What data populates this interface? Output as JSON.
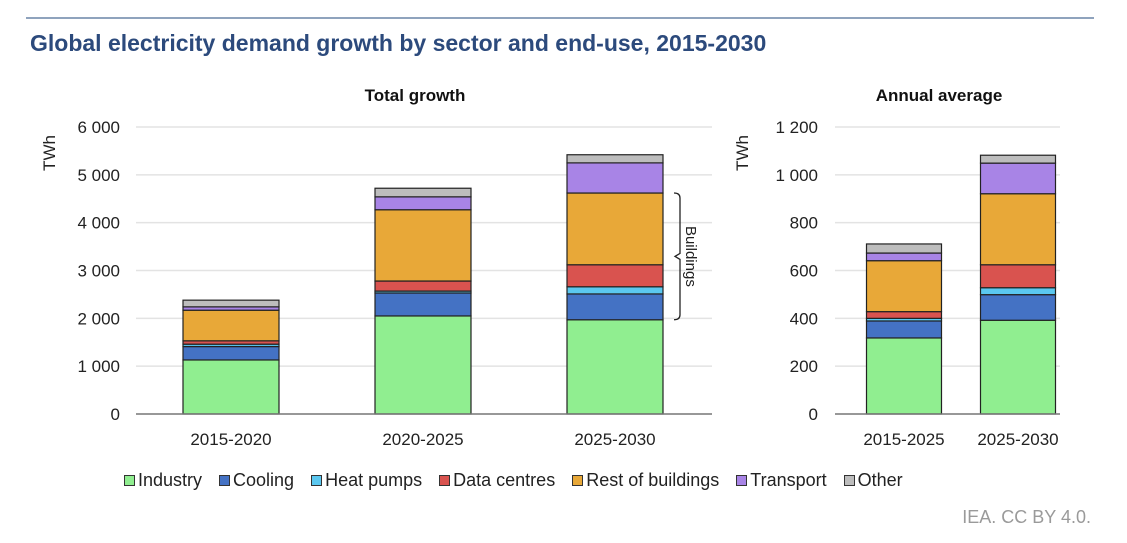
{
  "title": "Global electricity demand growth by sector and end-use, 2015-2030",
  "credit": "IEA. CC BY 4.0.",
  "bracket_label": "Buildings",
  "legend": [
    {
      "label": "Industry",
      "color": "#90ee90"
    },
    {
      "label": "Cooling",
      "color": "#4472c4"
    },
    {
      "label": "Heat pumps",
      "color": "#5bc8f0"
    },
    {
      "label": "Data centres",
      "color": "#d9534f"
    },
    {
      "label": "Rest of buildings",
      "color": "#e8a838"
    },
    {
      "label": "Transport",
      "color": "#a884e6"
    },
    {
      "label": "Other",
      "color": "#bdbdbd"
    }
  ],
  "chart_data": [
    {
      "type": "bar",
      "stacked": true,
      "title": "Total  growth",
      "xlabel": "",
      "ylabel": "TWh",
      "ylim": [
        0,
        6000
      ],
      "yticks": [
        0,
        1000,
        2000,
        3000,
        4000,
        5000,
        6000
      ],
      "ytick_labels": [
        "0",
        "1 000",
        "2 000",
        "3 000",
        "4 000",
        "5 000",
        "6 000"
      ],
      "grid": true,
      "categories": [
        "2015-2020",
        "2020-2025",
        "2025-2030"
      ],
      "series": [
        {
          "name": "Industry",
          "values": [
            1130,
            2050,
            1970
          ]
        },
        {
          "name": "Cooling",
          "values": [
            280,
            480,
            540
          ]
        },
        {
          "name": "Heat pumps",
          "values": [
            50,
            40,
            150
          ]
        },
        {
          "name": "Data centres",
          "values": [
            70,
            210,
            460
          ]
        },
        {
          "name": "Rest of buildings",
          "values": [
            640,
            1490,
            1500
          ]
        },
        {
          "name": "Transport",
          "values": [
            70,
            270,
            630
          ]
        },
        {
          "name": "Other",
          "values": [
            140,
            180,
            170
          ]
        }
      ],
      "annotation": {
        "text": "Buildings",
        "type": "bracket",
        "category": "2025-2030",
        "spans": [
          "Cooling",
          "Heat pumps",
          "Data centres",
          "Rest of buildings"
        ]
      }
    },
    {
      "type": "bar",
      "stacked": true,
      "title": "Annual average",
      "xlabel": "",
      "ylabel": "TWh",
      "ylim": [
        0,
        1200
      ],
      "yticks": [
        0,
        200,
        400,
        600,
        800,
        1000,
        1200
      ],
      "ytick_labels": [
        "0",
        "200",
        "400",
        "600",
        "800",
        "1 000",
        "1 200"
      ],
      "grid": true,
      "categories": [
        "2015-2025",
        "2025-2030"
      ],
      "series": [
        {
          "name": "Industry",
          "values": [
            318,
            392
          ]
        },
        {
          "name": "Cooling",
          "values": [
            71,
            107
          ]
        },
        {
          "name": "Heat pumps",
          "values": [
            11,
            29
          ]
        },
        {
          "name": "Data centres",
          "values": [
            28,
            96
          ]
        },
        {
          "name": "Rest of buildings",
          "values": [
            213,
            297
          ]
        },
        {
          "name": "Transport",
          "values": [
            32,
            128
          ]
        },
        {
          "name": "Other",
          "values": [
            38,
            33
          ]
        }
      ]
    }
  ]
}
